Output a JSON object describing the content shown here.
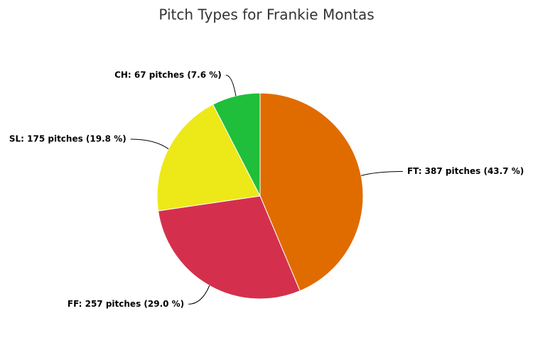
{
  "chart_data": {
    "type": "pie",
    "title": "Pitch Types for Frankie Montas",
    "values": [
      387,
      257,
      175,
      67
    ],
    "value_labels": [
      "FT: 387 pitches (43.7 %)",
      "FF: 257 pitches (29.0 %)",
      "SL: 175 pitches (19.8 %)",
      "CH: 67 pitches (7.6 %)"
    ],
    "colors": [
      "#e06c00",
      "#d4304d",
      "#ede817",
      "#1fbf3c"
    ]
  }
}
